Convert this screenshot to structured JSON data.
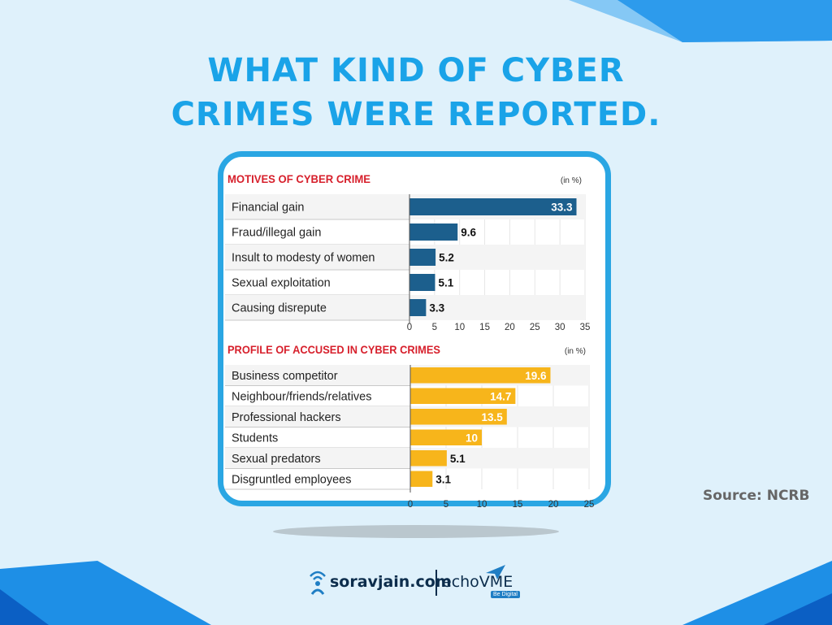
{
  "title": {
    "line1": "WHAT KIND OF CYBER",
    "line2": "CRIMES WERE REPORTED."
  },
  "source": "Source: NCRB",
  "footer": {
    "brand1": "soravjain.com",
    "brand2": "echoVME",
    "tagline": "Be Digital"
  },
  "colors": {
    "title": "#1aa3e8",
    "frame": "#2aa6e3",
    "heading": "#d7202c",
    "bar_blue": "#1c5f8d",
    "bar_yellow": "#f7b51b"
  },
  "chart_data": [
    {
      "type": "bar",
      "orientation": "horizontal",
      "title": "MOTIVES OF CYBER CRIME",
      "unit": "(in %)",
      "categories": [
        "Financial gain",
        "Fraud/illegal gain",
        "Insult to modesty of women",
        "Sexual exploitation",
        "Causing disrepute"
      ],
      "values": [
        33.3,
        9.6,
        5.2,
        5.1,
        3.3
      ],
      "value_labels": [
        "33.3",
        "9.6",
        "5.2",
        "5.1",
        "3.3"
      ],
      "xlim": [
        0,
        35
      ],
      "ticks": [
        "0",
        "5",
        "10",
        "15",
        "20",
        "25",
        "30",
        "35"
      ],
      "color": "#1c5f8d"
    },
    {
      "type": "bar",
      "orientation": "horizontal",
      "title": "PROFILE OF ACCUSED IN CYBER CRIMES",
      "unit": "(in %)",
      "categories": [
        "Business competitor",
        "Neighbour/friends/relatives",
        "Professional hackers",
        "Students",
        "Sexual predators",
        "Disgruntled employees"
      ],
      "values": [
        19.6,
        14.7,
        13.5,
        10,
        5.1,
        3.1
      ],
      "value_labels": [
        "19.6",
        "14.7",
        "13.5",
        "10",
        "5.1",
        "3.1"
      ],
      "xlim": [
        0,
        25
      ],
      "ticks": [
        "0",
        "5",
        "10",
        "15",
        "20",
        "25"
      ],
      "color": "#f7b51b"
    }
  ]
}
